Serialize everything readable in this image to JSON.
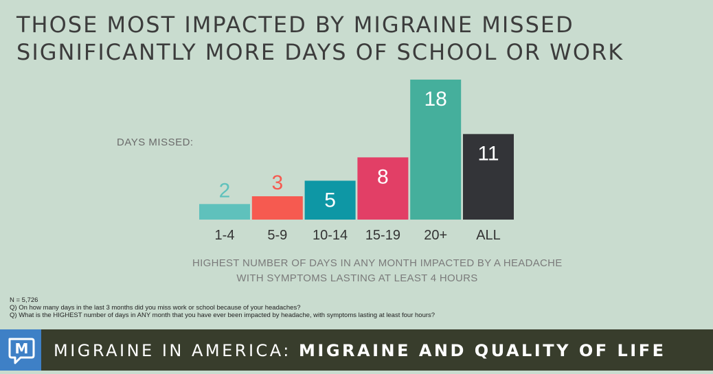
{
  "title": {
    "line1": "THOSE MOST IMPACTED BY MIGRAINE MISSED",
    "line2": "SIGNIFICANTLY MORE DAYS OF SCHOOL OR WORK"
  },
  "days_missed_label": "DAYS MISSED:",
  "chart_data": {
    "type": "bar",
    "categories": [
      "1-4",
      "5-9",
      "10-14",
      "15-19",
      "20+",
      "ALL"
    ],
    "values": [
      2,
      3,
      5,
      8,
      18,
      11
    ],
    "colors": [
      "#5fc1bc",
      "#f65a50",
      "#0e97a5",
      "#e23f66",
      "#45af9c",
      "#333438"
    ],
    "label_colors": [
      "#5fc1bc",
      "#f65a50",
      "#ffffff",
      "#ffffff",
      "#ffffff",
      "#ffffff"
    ],
    "xlabel_line1": "HIGHEST NUMBER OF DAYS IN ANY MONTH IMPACTED BY A HEADACHE",
    "xlabel_line2": "WITH SYMPTOMS LASTING AT LEAST 4 HOURS",
    "ylabel": "DAYS MISSED:",
    "ylim": [
      0,
      18
    ],
    "grid": false,
    "legend": "none"
  },
  "notes": {
    "n": "N = 5,726",
    "q1": "Q) On how many days in the last 3 months did you miss work or school because of your headaches?",
    "q2": "Q) What is the HIGHEST number of days in ANY month that you have ever been impacted by headache, with symptoms lasting at least four hours?"
  },
  "footer": {
    "logo_letter": "M",
    "text_thin": "MIGRAINE IN AMERICA:",
    "text_bold": "MIGRAINE AND QUALITY OF LIFE",
    "background": "#383d2c",
    "logo_color": "#3e80c6"
  }
}
